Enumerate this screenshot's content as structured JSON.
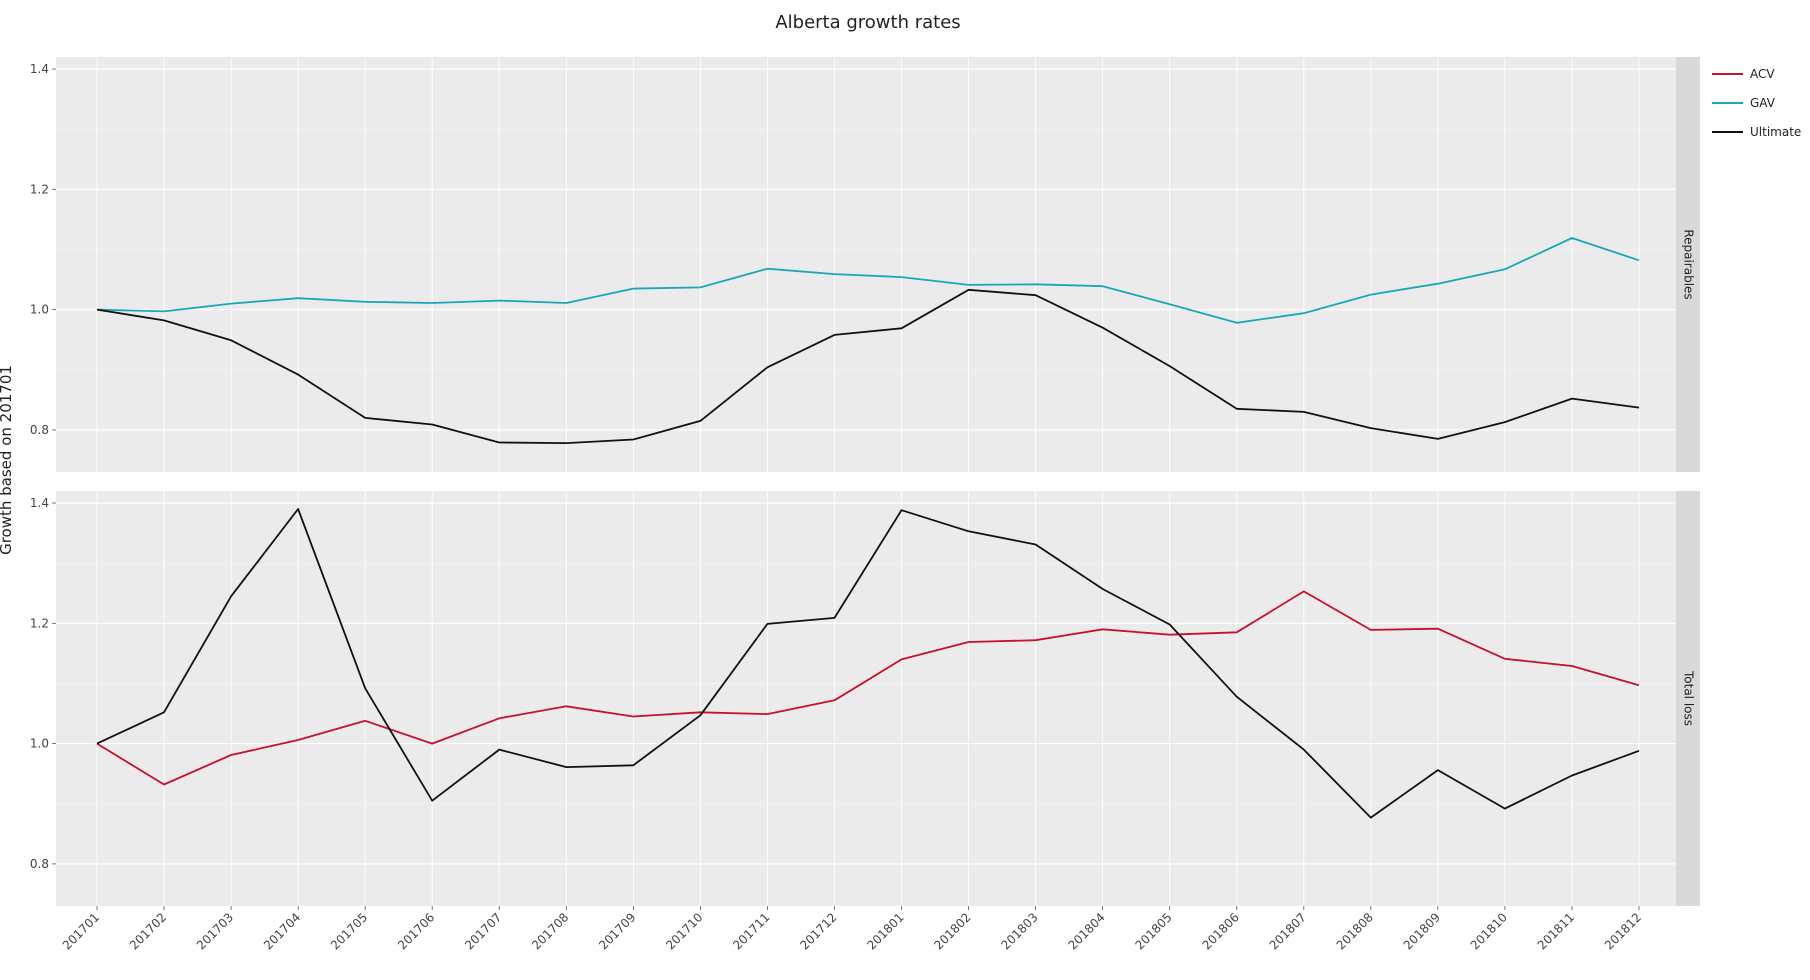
{
  "chart_data": {
    "type": "line",
    "title": "Alberta growth rates",
    "ylabel": "Growth based on 201701",
    "xlabel": "",
    "categories": [
      "201701",
      "201702",
      "201703",
      "201704",
      "201705",
      "201706",
      "201707",
      "201708",
      "201709",
      "201710",
      "201711",
      "201712",
      "201801",
      "201802",
      "201803",
      "201804",
      "201805",
      "201806",
      "201807",
      "201808",
      "201809",
      "201810",
      "201811",
      "201812"
    ],
    "ylim": [
      0.73,
      1.42
    ],
    "yticks": [
      0.8,
      1.0,
      1.2,
      1.4
    ],
    "grid": true,
    "legend_position": "right",
    "legend": [
      {
        "name": "ACV",
        "color": "#c8102e"
      },
      {
        "name": "GAV",
        "color": "#17a9b8"
      },
      {
        "name": "Ultimate",
        "color": "#111111"
      }
    ],
    "panels": [
      {
        "name": "Repairables",
        "series": [
          {
            "name": "GAV",
            "color": "#17a9b8",
            "values": [
              1.0,
              0.997,
              1.01,
              1.019,
              1.013,
              1.011,
              1.015,
              1.011,
              1.035,
              1.037,
              1.068,
              1.059,
              1.054,
              1.041,
              1.042,
              1.039,
              1.009,
              0.978,
              0.994,
              1.025,
              1.043,
              1.067,
              1.119,
              1.082
            ]
          },
          {
            "name": "Ultimate",
            "color": "#111111",
            "values": [
              1.0,
              0.982,
              0.949,
              0.892,
              0.82,
              0.809,
              0.779,
              0.778,
              0.784,
              0.815,
              0.904,
              0.958,
              0.969,
              1.033,
              1.024,
              0.97,
              0.906,
              0.835,
              0.83,
              0.803,
              0.785,
              0.813,
              0.852,
              0.837
            ]
          }
        ]
      },
      {
        "name": "Total loss",
        "series": [
          {
            "name": "ACV",
            "color": "#c8102e",
            "values": [
              1.0,
              0.932,
              0.981,
              1.006,
              1.038,
              1.0,
              1.042,
              1.062,
              1.045,
              1.052,
              1.049,
              1.072,
              1.14,
              1.169,
              1.172,
              1.19,
              1.181,
              1.185,
              1.253,
              1.189,
              1.191,
              1.141,
              1.129,
              1.097
            ]
          },
          {
            "name": "Ultimate",
            "color": "#111111",
            "values": [
              1.0,
              1.052,
              1.245,
              1.39,
              1.092,
              0.905,
              0.99,
              0.961,
              0.964,
              1.047,
              1.199,
              1.209,
              1.388,
              1.353,
              1.331,
              1.257,
              1.198,
              1.078,
              0.99,
              0.877,
              0.956,
              0.892,
              0.947,
              0.988
            ]
          }
        ]
      }
    ]
  }
}
